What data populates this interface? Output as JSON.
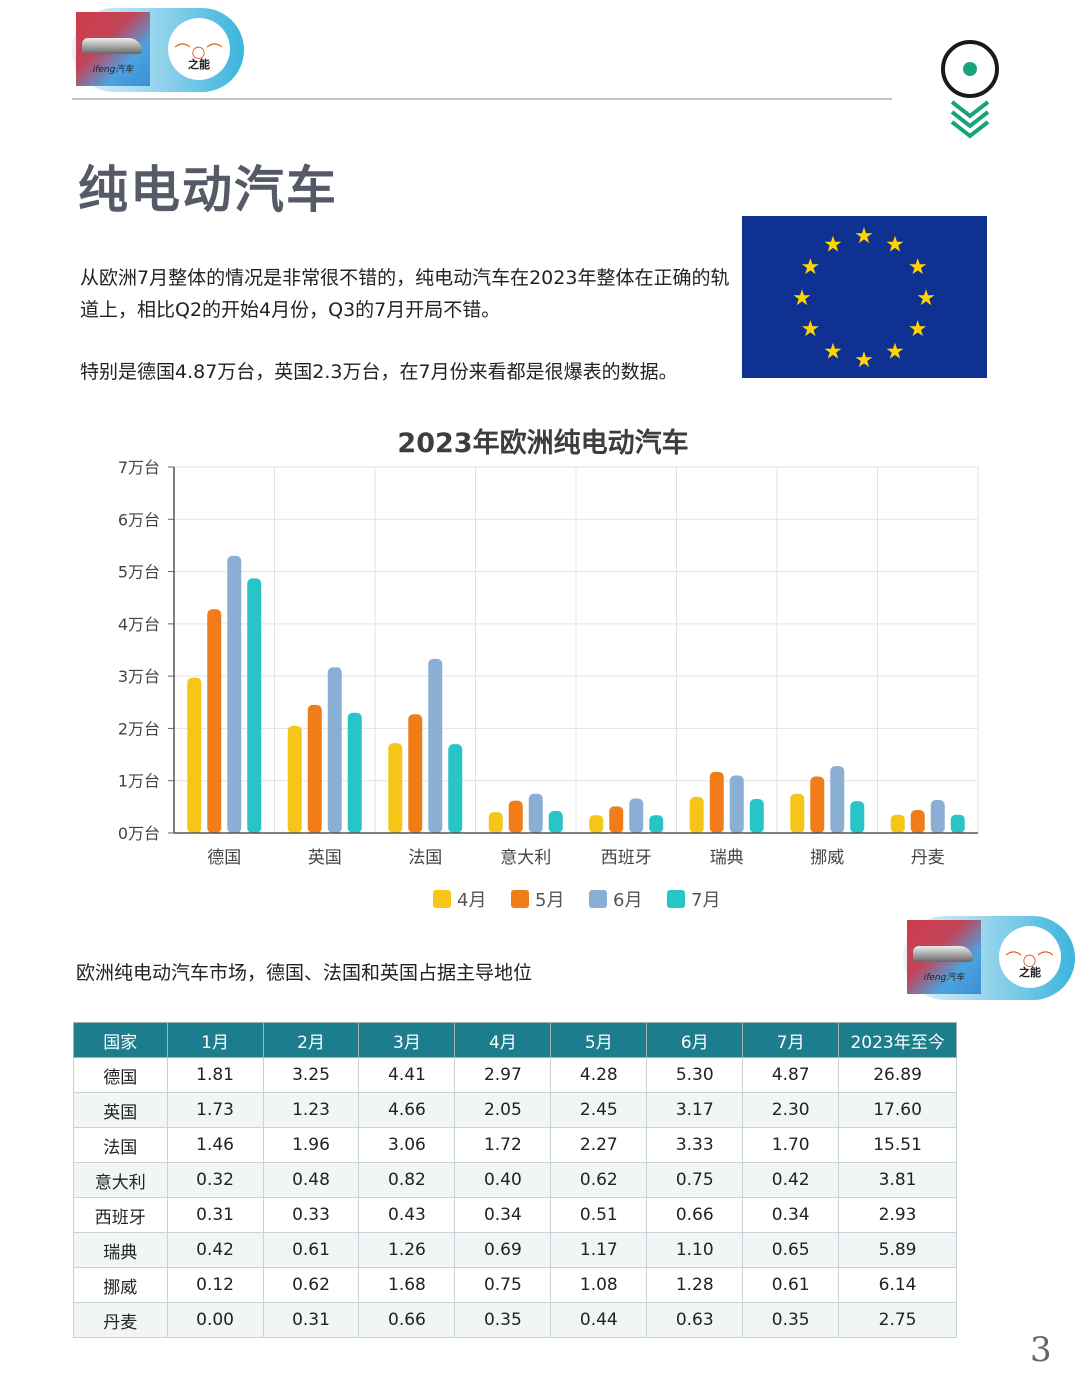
{
  "brand": {
    "logo_caption": "ifeng汽车",
    "partner_name": "之能"
  },
  "page": {
    "title": "纯电动汽车",
    "paragraph1": "从欧洲7月整体的情况是非常很不错的，纯电动汽车在2023年整体在正确的轨道上，相比Q2的开始4月份，Q3的7月开局不错。",
    "paragraph2": "特别是德国4.87万台，英国2.3万台，在7月份来看都是很爆表的数据。",
    "caption": "欧洲纯电动汽车市场，德国、法国和英国占据主导地位",
    "page_number": "3"
  },
  "colors": {
    "table_header": "#1c7d8d",
    "flag_blue": "#0e3192",
    "flag_star": "#ffd400",
    "pin_green": "#1aa37a"
  },
  "chart_data": {
    "type": "bar",
    "title": "2023年欧洲纯电动汽车",
    "categories": [
      "德国",
      "英国",
      "法国",
      "意大利",
      "西班牙",
      "瑞典",
      "挪威",
      "丹麦"
    ],
    "series": [
      {
        "name": "4月",
        "color": "#f5c518",
        "values": [
          2.97,
          2.05,
          1.72,
          0.4,
          0.34,
          0.69,
          0.75,
          0.35
        ]
      },
      {
        "name": "5月",
        "color": "#f07d1a",
        "values": [
          4.28,
          2.45,
          2.27,
          0.62,
          0.51,
          1.17,
          1.08,
          0.44
        ]
      },
      {
        "name": "6月",
        "color": "#8aafd4",
        "values": [
          5.3,
          3.17,
          3.33,
          0.75,
          0.66,
          1.1,
          1.28,
          0.63
        ]
      },
      {
        "name": "7月",
        "color": "#27c4c8",
        "values": [
          4.87,
          2.3,
          1.7,
          0.42,
          0.34,
          0.65,
          0.61,
          0.35
        ]
      }
    ],
    "ylim": [
      0,
      7
    ],
    "yticks": [
      "0万台",
      "1万台",
      "2万台",
      "3万台",
      "4万台",
      "5万台",
      "6万台",
      "7万台"
    ],
    "grid": true,
    "legend": "bottom"
  },
  "table": {
    "headers": [
      "国家",
      "1月",
      "2月",
      "3月",
      "4月",
      "5月",
      "6月",
      "7月",
      "2023年至今"
    ],
    "rows": [
      [
        "德国",
        "1.81",
        "3.25",
        "4.41",
        "2.97",
        "4.28",
        "5.30",
        "4.87",
        "26.89"
      ],
      [
        "英国",
        "1.73",
        "1.23",
        "4.66",
        "2.05",
        "2.45",
        "3.17",
        "2.30",
        "17.60"
      ],
      [
        "法国",
        "1.46",
        "1.96",
        "3.06",
        "1.72",
        "2.27",
        "3.33",
        "1.70",
        "15.51"
      ],
      [
        "意大利",
        "0.32",
        "0.48",
        "0.82",
        "0.40",
        "0.62",
        "0.75",
        "0.42",
        "3.81"
      ],
      [
        "西班牙",
        "0.31",
        "0.33",
        "0.43",
        "0.34",
        "0.51",
        "0.66",
        "0.34",
        "2.93"
      ],
      [
        "瑞典",
        "0.42",
        "0.61",
        "1.26",
        "0.69",
        "1.17",
        "1.10",
        "0.65",
        "5.89"
      ],
      [
        "挪威",
        "0.12",
        "0.62",
        "1.68",
        "0.75",
        "1.08",
        "1.28",
        "0.61",
        "6.14"
      ],
      [
        "丹麦",
        "0.00",
        "0.31",
        "0.66",
        "0.35",
        "0.44",
        "0.63",
        "0.35",
        "2.75"
      ]
    ]
  }
}
